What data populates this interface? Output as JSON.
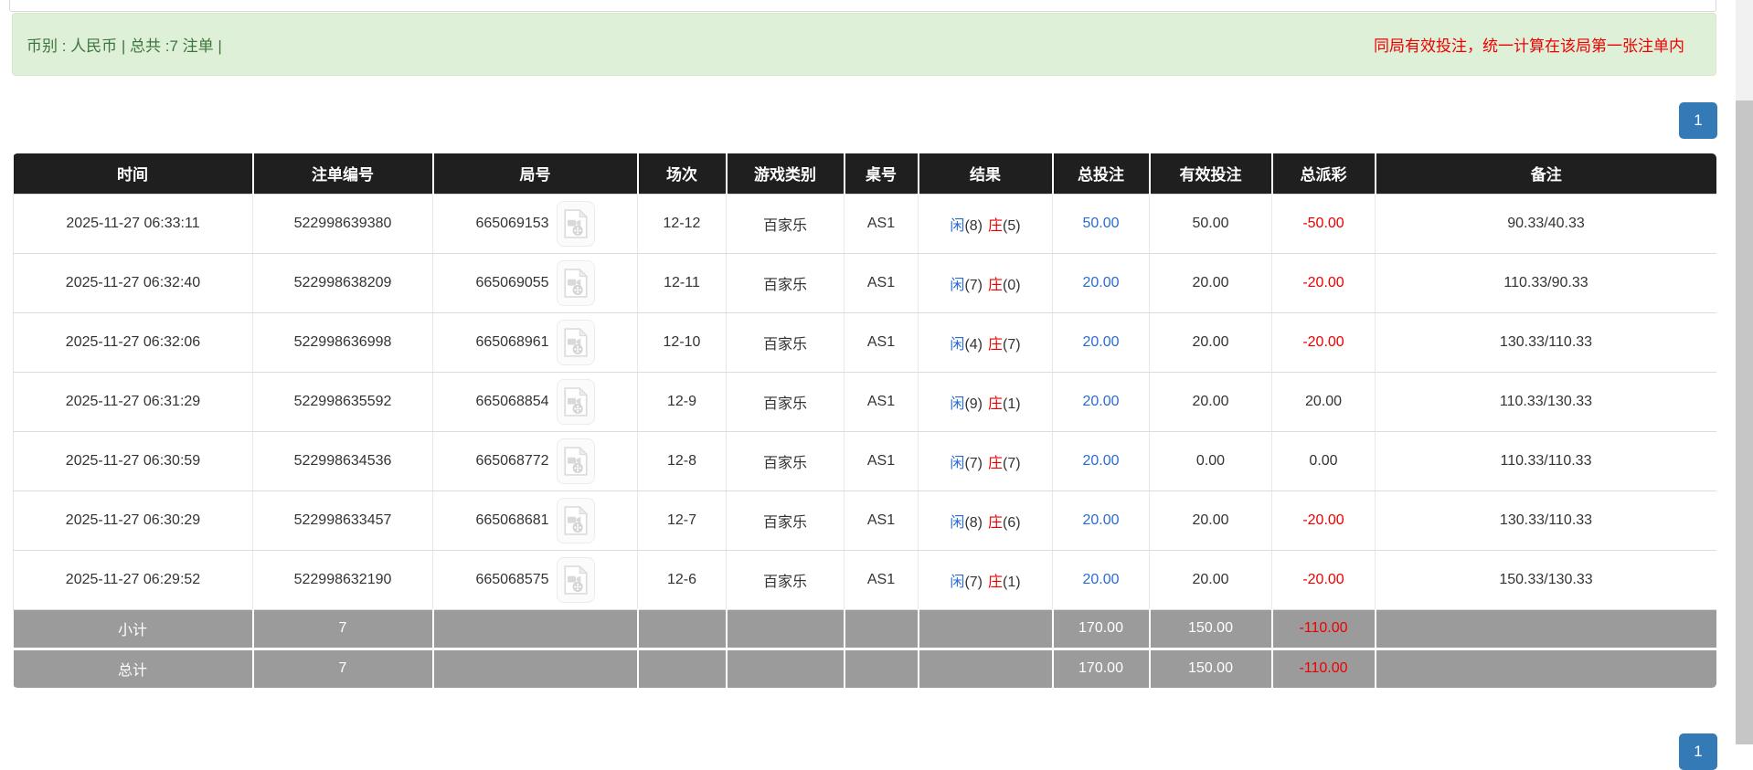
{
  "banner": {
    "left_text": "币别 : 人民币 | 总共 :7 注单 |",
    "right_text": "同局有效投注，统一计算在该局第一张注单内"
  },
  "pagination": {
    "top_page": "1",
    "bottom_page": "1"
  },
  "icons": {
    "video_icon": "video-file-icon"
  },
  "colors": {
    "banner_bg": "#dff0d8",
    "banner_text": "#3c763d",
    "notice_red": "#ee0000",
    "link_blue": "#2a6bd2",
    "header_bg": "#1f1f1f",
    "footer_gray": "#9b9b9b",
    "pager_blue": "#337ab7"
  },
  "table": {
    "headers": [
      "时间",
      "注单编号",
      "局号",
      "场次",
      "游戏类别",
      "桌号",
      "结果",
      "总投注",
      "有效投注",
      "总派彩",
      "备注"
    ],
    "rows": [
      {
        "time": "2025-11-27 06:33:11",
        "bet_id": "522998639380",
        "round_id": "665069153",
        "session": "12-12",
        "game_type": "百家乐",
        "table_no": "AS1",
        "result": {
          "player_label": "闲",
          "player_score": "(8)",
          "banker_label": "庄",
          "banker_score": "(5)"
        },
        "total_bet": "50.00",
        "valid_bet": "50.00",
        "payout": "-50.00",
        "remark": "90.33/40.33"
      },
      {
        "time": "2025-11-27 06:32:40",
        "bet_id": "522998638209",
        "round_id": "665069055",
        "session": "12-11",
        "game_type": "百家乐",
        "table_no": "AS1",
        "result": {
          "player_label": "闲",
          "player_score": "(7)",
          "banker_label": "庄",
          "banker_score": "(0)"
        },
        "total_bet": "20.00",
        "valid_bet": "20.00",
        "payout": "-20.00",
        "remark": "110.33/90.33"
      },
      {
        "time": "2025-11-27 06:32:06",
        "bet_id": "522998636998",
        "round_id": "665068961",
        "session": "12-10",
        "game_type": "百家乐",
        "table_no": "AS1",
        "result": {
          "player_label": "闲",
          "player_score": "(4)",
          "banker_label": "庄",
          "banker_score": "(7)"
        },
        "total_bet": "20.00",
        "valid_bet": "20.00",
        "payout": "-20.00",
        "remark": "130.33/110.33"
      },
      {
        "time": "2025-11-27 06:31:29",
        "bet_id": "522998635592",
        "round_id": "665068854",
        "session": "12-9",
        "game_type": "百家乐",
        "table_no": "AS1",
        "result": {
          "player_label": "闲",
          "player_score": "(9)",
          "banker_label": "庄",
          "banker_score": "(1)"
        },
        "total_bet": "20.00",
        "valid_bet": "20.00",
        "payout": "20.00",
        "remark": "110.33/130.33"
      },
      {
        "time": "2025-11-27 06:30:59",
        "bet_id": "522998634536",
        "round_id": "665068772",
        "session": "12-8",
        "game_type": "百家乐",
        "table_no": "AS1",
        "result": {
          "player_label": "闲",
          "player_score": "(7)",
          "banker_label": "庄",
          "banker_score": "(7)"
        },
        "total_bet": "20.00",
        "valid_bet": "0.00",
        "payout": "0.00",
        "remark": "110.33/110.33"
      },
      {
        "time": "2025-11-27 06:30:29",
        "bet_id": "522998633457",
        "round_id": "665068681",
        "session": "12-7",
        "game_type": "百家乐",
        "table_no": "AS1",
        "result": {
          "player_label": "闲",
          "player_score": "(8)",
          "banker_label": "庄",
          "banker_score": "(6)"
        },
        "total_bet": "20.00",
        "valid_bet": "20.00",
        "payout": "-20.00",
        "remark": "130.33/110.33"
      },
      {
        "time": "2025-11-27 06:29:52",
        "bet_id": "522998632190",
        "round_id": "665068575",
        "session": "12-6",
        "game_type": "百家乐",
        "table_no": "AS1",
        "result": {
          "player_label": "闲",
          "player_score": "(7)",
          "banker_label": "庄",
          "banker_score": "(1)"
        },
        "total_bet": "20.00",
        "valid_bet": "20.00",
        "payout": "-20.00",
        "remark": "150.33/130.33"
      }
    ],
    "footer_rows": [
      {
        "label": "小计",
        "count": "7",
        "total_bet": "170.00",
        "valid_bet": "150.00",
        "payout": "-110.00"
      },
      {
        "label": "总计",
        "count": "7",
        "total_bet": "170.00",
        "valid_bet": "150.00",
        "payout": "-110.00"
      }
    ]
  }
}
